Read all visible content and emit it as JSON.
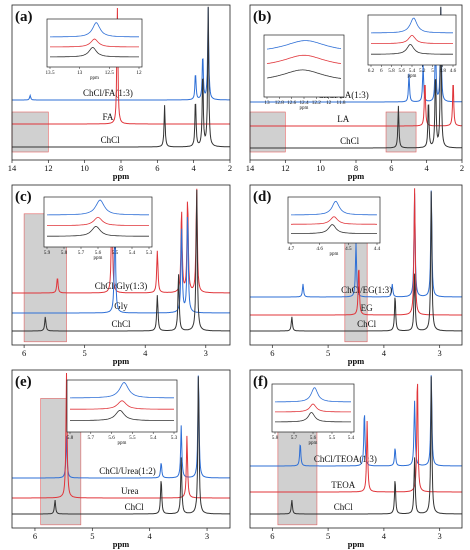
{
  "figure": {
    "x_axis_label": "ppm",
    "colors": {
      "blue": "#2e6fd6",
      "red": "#e0353a",
      "black": "#333333",
      "shade": "#c8c8c8",
      "shade_edge": "#e06060"
    }
  },
  "chart_data": [
    {
      "panel": "(a)",
      "type": "line",
      "xlim": [
        14,
        2
      ],
      "xticks": [
        14,
        12,
        10,
        8,
        6,
        4,
        2
      ],
      "series": [
        {
          "name": "ChCl/FA(1:3)",
          "color": "#2e6fd6",
          "peaks": [
            {
              "x": 13,
              "h": 0.05
            },
            {
              "x": 3.9,
              "h": 0.3
            },
            {
              "x": 3.5,
              "h": 0.5
            },
            {
              "x": 3.2,
              "h": 1.0
            }
          ]
        },
        {
          "name": "FA",
          "color": "#e0353a",
          "peaks": [
            {
              "x": 8.2,
              "h": 1.0
            }
          ]
        },
        {
          "name": "ChCl",
          "color": "#333333",
          "peaks": [
            {
              "x": 5.6,
              "h": 0.3
            },
            {
              "x": 3.9,
              "h": 0.35
            },
            {
              "x": 3.5,
              "h": 0.55
            },
            {
              "x": 3.2,
              "h": 1.0
            }
          ]
        }
      ],
      "shaded_region": [
        14,
        12
      ],
      "inset": {
        "xticks": [
          13.5,
          13.0,
          12.5,
          12.0
        ],
        "xlabel": "ppm"
      }
    },
    {
      "panel": "(b)",
      "type": "line",
      "xlim": [
        14,
        2
      ],
      "xticks": [
        14,
        12,
        10,
        8,
        6,
        4,
        2
      ],
      "series": [
        {
          "name": "ChCl/LA(1:3)",
          "color": "#2e6fd6",
          "peaks": [
            {
              "x": 5.0,
              "h": 0.3
            },
            {
              "x": 4.2,
              "h": 0.4
            },
            {
              "x": 3.5,
              "h": 0.6
            },
            {
              "x": 3.2,
              "h": 1.0
            },
            {
              "x": 1.4,
              "h": 0.5
            }
          ]
        },
        {
          "name": "LA",
          "color": "#e0353a",
          "peaks": [
            {
              "x": 4.1,
              "h": 0.4
            },
            {
              "x": 2.5,
              "h": 0.4
            }
          ]
        },
        {
          "name": "ChCl",
          "color": "#333333",
          "peaks": [
            {
              "x": 5.6,
              "h": 0.3
            },
            {
              "x": 3.9,
              "h": 0.35
            },
            {
              "x": 3.5,
              "h": 0.55
            },
            {
              "x": 3.2,
              "h": 1.0
            }
          ]
        }
      ],
      "shaded_region": [
        14,
        12
      ],
      "shaded_region_2": [
        6.3,
        4.6
      ],
      "inset_left": {
        "xticks": [
          13.0,
          12.8,
          12.6,
          12.4,
          12.2,
          12.0,
          11.8
        ],
        "xlabel": "ppm"
      },
      "inset_right": {
        "xticks": [
          6.2,
          6.0,
          5.8,
          5.6,
          5.4,
          5.2,
          5.0,
          4.8,
          4.6
        ],
        "xlabel": "ppm"
      }
    },
    {
      "panel": "(c)",
      "type": "line",
      "xlim": [
        6.2,
        2.6
      ],
      "xticks": [
        6,
        5,
        4,
        3
      ],
      "series": [
        {
          "name": "ChCl/Gly(1:3)",
          "color": "#e0353a",
          "peaks": [
            {
              "x": 5.45,
              "h": 0.15
            },
            {
              "x": 4.55,
              "h": 0.9
            },
            {
              "x": 3.8,
              "h": 0.4
            },
            {
              "x": 3.4,
              "h": 0.8
            },
            {
              "x": 3.3,
              "h": 0.9
            },
            {
              "x": 3.15,
              "h": 1.0
            }
          ]
        },
        {
          "name": "Gly",
          "color": "#2e6fd6",
          "peaks": [
            {
              "x": 4.5,
              "h": 0.8
            },
            {
              "x": 3.4,
              "h": 0.7
            },
            {
              "x": 3.3,
              "h": 0.8
            }
          ]
        },
        {
          "name": "ChCl",
          "color": "#333333",
          "peaks": [
            {
              "x": 5.65,
              "h": 0.1
            },
            {
              "x": 3.8,
              "h": 0.25
            },
            {
              "x": 3.45,
              "h": 0.4
            },
            {
              "x": 3.15,
              "h": 1.0
            }
          ]
        }
      ],
      "shaded_region": [
        6.0,
        5.3
      ],
      "inset": {
        "xticks": [
          5.9,
          5.8,
          5.7,
          5.6,
          5.5,
          5.4,
          5.3
        ],
        "xlabel": "ppm"
      }
    },
    {
      "panel": "(d)",
      "type": "line",
      "xlim": [
        6.4,
        2.6
      ],
      "xticks": [
        6,
        5,
        4,
        3
      ],
      "series": [
        {
          "name": "ChCl/EG(1:3)",
          "color": "#2e6fd6",
          "peaks": [
            {
              "x": 5.45,
              "h": 0.12
            },
            {
              "x": 4.5,
              "h": 0.5
            },
            {
              "x": 3.85,
              "h": 0.12
            },
            {
              "x": 3.45,
              "h": 0.95
            },
            {
              "x": 3.15,
              "h": 1.0
            }
          ]
        },
        {
          "name": "EG",
          "color": "#e0353a",
          "peaks": [
            {
              "x": 4.45,
              "h": 0.4
            },
            {
              "x": 3.45,
              "h": 1.0
            }
          ]
        },
        {
          "name": "ChCl",
          "color": "#333333",
          "peaks": [
            {
              "x": 5.65,
              "h": 0.1
            },
            {
              "x": 3.8,
              "h": 0.25
            },
            {
              "x": 3.45,
              "h": 0.4
            },
            {
              "x": 3.15,
              "h": 1.0
            }
          ]
        }
      ],
      "shaded_region": [
        4.7,
        4.3
      ],
      "inset": {
        "xticks": [
          4.7,
          4.6,
          4.5,
          4.4
        ],
        "xlabel": "ppm"
      }
    },
    {
      "panel": "(e)",
      "type": "line",
      "xlim": [
        6.4,
        2.6
      ],
      "xticks": [
        6,
        5,
        4,
        3
      ],
      "series": [
        {
          "name": "ChCl/Urea(1:2)",
          "color": "#2e6fd6",
          "peaks": [
            {
              "x": 5.45,
              "h": 0.4
            },
            {
              "x": 3.8,
              "h": 0.15
            },
            {
              "x": 3.45,
              "h": 0.5
            },
            {
              "x": 3.15,
              "h": 1.0
            }
          ]
        },
        {
          "name": "Urea",
          "color": "#e0353a",
          "peaks": [
            {
              "x": 5.45,
              "h": 1.0
            },
            {
              "x": 3.35,
              "h": 0.5
            }
          ]
        },
        {
          "name": "ChCl",
          "color": "#333333",
          "peaks": [
            {
              "x": 5.65,
              "h": 0.1
            },
            {
              "x": 3.8,
              "h": 0.25
            },
            {
              "x": 3.45,
              "h": 0.4
            },
            {
              "x": 3.15,
              "h": 1.0
            }
          ]
        }
      ],
      "shaded_region": [
        5.9,
        5.2
      ],
      "inset": {
        "xticks": [
          5.8,
          5.7,
          5.6,
          5.5,
          5.4,
          5.3
        ],
        "xlabel": "ppm"
      }
    },
    {
      "panel": "(f)",
      "type": "line",
      "xlim": [
        6.4,
        2.6
      ],
      "xticks": [
        6,
        5,
        4,
        3
      ],
      "series": [
        {
          "name": "ChCl/TEOA(1:3)",
          "color": "#2e6fd6",
          "peaks": [
            {
              "x": 5.5,
              "h": 0.25
            },
            {
              "x": 4.35,
              "h": 0.6
            },
            {
              "x": 3.8,
              "h": 0.2
            },
            {
              "x": 3.45,
              "h": 0.7
            },
            {
              "x": 3.15,
              "h": 1.0
            }
          ]
        },
        {
          "name": "TEOA",
          "color": "#e0353a",
          "peaks": [
            {
              "x": 4.3,
              "h": 0.6
            },
            {
              "x": 3.4,
              "h": 1.0
            }
          ]
        },
        {
          "name": "ChCl",
          "color": "#333333",
          "peaks": [
            {
              "x": 5.65,
              "h": 0.1
            },
            {
              "x": 3.8,
              "h": 0.25
            },
            {
              "x": 3.45,
              "h": 0.4
            },
            {
              "x": 3.15,
              "h": 1.0
            }
          ]
        }
      ],
      "shaded_region": [
        5.9,
        5.2
      ],
      "inset": {
        "xticks": [
          5.8,
          5.7,
          5.6,
          5.5,
          5.4
        ],
        "xlabel": "ppm"
      }
    }
  ]
}
